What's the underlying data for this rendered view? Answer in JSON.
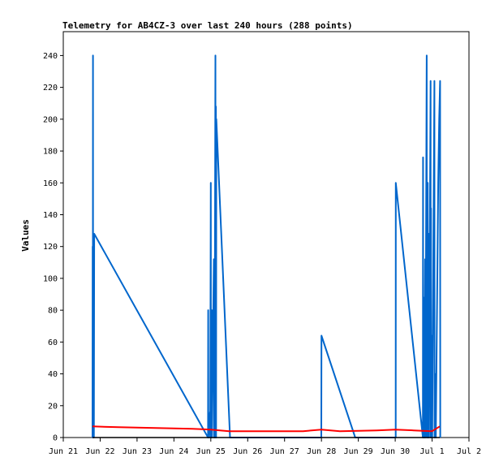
{
  "chart_data": {
    "type": "line",
    "title": "Telemetry for AB4CZ-3 over last 240 hours (288 points)",
    "ylabel": "Values",
    "xlabel": "",
    "ylim": [
      0,
      255
    ],
    "xlim": [
      "Jun 21",
      "Jul 2"
    ],
    "grid": false,
    "legend": "none",
    "y_ticks": [
      0,
      20,
      40,
      60,
      80,
      100,
      120,
      140,
      160,
      180,
      200,
      220,
      240
    ],
    "x_ticks": [
      "Jun 21",
      "Jun 22",
      "Jun 23",
      "Jun 24",
      "Jun 25",
      "Jun 26",
      "Jun 27",
      "Jun 28",
      "Jun 29",
      "Jun 30",
      "Jul 1",
      "Jul 2"
    ],
    "series": [
      {
        "color": "#0066cc",
        "points": [
          [
            "Jun 21 19:00",
            0
          ],
          [
            "Jun 21 19:06",
            120
          ],
          [
            "Jun 21 19:12",
            0
          ],
          [
            "Jun 21 19:18",
            240
          ],
          [
            "Jun 21 19:24",
            0
          ],
          [
            "Jun 21 19:30",
            48
          ],
          [
            "Jun 21 19:36",
            0
          ],
          [
            "Jun 21 19:48",
            96
          ],
          [
            "Jun 21 19:54",
            0
          ],
          [
            "Jun 21 20:06",
            128
          ],
          [
            "Jun 24 22:12",
            0
          ],
          [
            "Jun 24 22:18",
            80
          ],
          [
            "Jun 24 22:24",
            0
          ],
          [
            "Jun 24 23:30",
            16
          ],
          [
            "Jun 24 23:36",
            0
          ],
          [
            "Jun 25 00:00",
            160
          ],
          [
            "Jun 25 00:06",
            0
          ],
          [
            "Jun 25 00:12",
            80
          ],
          [
            "Jun 25 00:18",
            0
          ],
          [
            "Jun 25 00:36",
            80
          ],
          [
            "Jun 25 00:42",
            0
          ],
          [
            "Jun 25 02:00",
            112
          ],
          [
            "Jun 25 02:06",
            0
          ],
          [
            "Jun 25 02:18",
            80
          ],
          [
            "Jun 25 02:24",
            0
          ],
          [
            "Jun 25 03:00",
            240
          ],
          [
            "Jun 25 03:06",
            0
          ],
          [
            "Jun 25 03:18",
            208
          ],
          [
            "Jun 25 03:24",
            0
          ],
          [
            "Jun 25 03:36",
            200
          ],
          [
            "Jun 25 12:30",
            0
          ],
          [
            "Jun 27 23:54",
            0
          ],
          [
            "Jun 28 00:00",
            64
          ],
          [
            "Jun 28 22:00",
            0
          ],
          [
            "Jun 30 00:18",
            0
          ],
          [
            "Jun 30 00:24",
            160
          ],
          [
            "Jun 30 18:00",
            0
          ],
          [
            "Jun 30 18:06",
            176
          ],
          [
            "Jun 30 18:12",
            0
          ],
          [
            "Jun 30 18:54",
            88
          ],
          [
            "Jun 30 19:00",
            0
          ],
          [
            "Jun 30 19:30",
            112
          ],
          [
            "Jun 30 19:36",
            0
          ],
          [
            "Jun 30 20:30",
            240
          ],
          [
            "Jun 30 20:36",
            0
          ],
          [
            "Jun 30 21:12",
            160
          ],
          [
            "Jun 30 21:18",
            0
          ],
          [
            "Jun 30 21:48",
            128
          ],
          [
            "Jun 30 21:54",
            0
          ],
          [
            "Jun 30 23:00",
            224
          ],
          [
            "Jun 30 23:06",
            0
          ],
          [
            "Jun 30 23:18",
            144
          ],
          [
            "Jun 30 23:24",
            0
          ],
          [
            "Jul 1 00:00",
            64
          ],
          [
            "Jul 1 00:06",
            0
          ],
          [
            "Jul 1 01:30",
            224
          ],
          [
            "Jul 1 01:36",
            0
          ],
          [
            "Jul 1 02:18",
            40
          ],
          [
            "Jul 1 02:24",
            0
          ],
          [
            "Jul 1 04:00",
            160
          ],
          [
            "Jul 1 04:36",
            200
          ],
          [
            "Jul 1 05:00",
            215
          ],
          [
            "Jul 1 05:12",
            224
          ],
          [
            "Jul 1 05:18",
            0
          ]
        ]
      },
      {
        "color": "#ff0000",
        "points": [
          [
            "Jun 21 19:00",
            7
          ],
          [
            "Jun 22 12:00",
            6.5
          ],
          [
            "Jun 23 12:00",
            6
          ],
          [
            "Jun 24 12:00",
            5.5
          ],
          [
            "Jun 25 00:00",
            5
          ],
          [
            "Jun 25 12:00",
            4
          ],
          [
            "Jun 26 12:00",
            4
          ],
          [
            "Jun 27 12:00",
            4
          ],
          [
            "Jun 28 00:00",
            5
          ],
          [
            "Jun 28 12:00",
            4
          ],
          [
            "Jun 29 12:00",
            4.5
          ],
          [
            "Jun 30 00:00",
            5
          ],
          [
            "Jun 30 12:00",
            4.5
          ],
          [
            "Jul 1 00:00",
            4
          ],
          [
            "Jul 1 05:00",
            7
          ]
        ]
      },
      {
        "color": "#000000",
        "points": [
          [
            "Jun 21 19:00",
            0
          ],
          [
            "Jul 1 05:00",
            0
          ]
        ]
      }
    ]
  }
}
